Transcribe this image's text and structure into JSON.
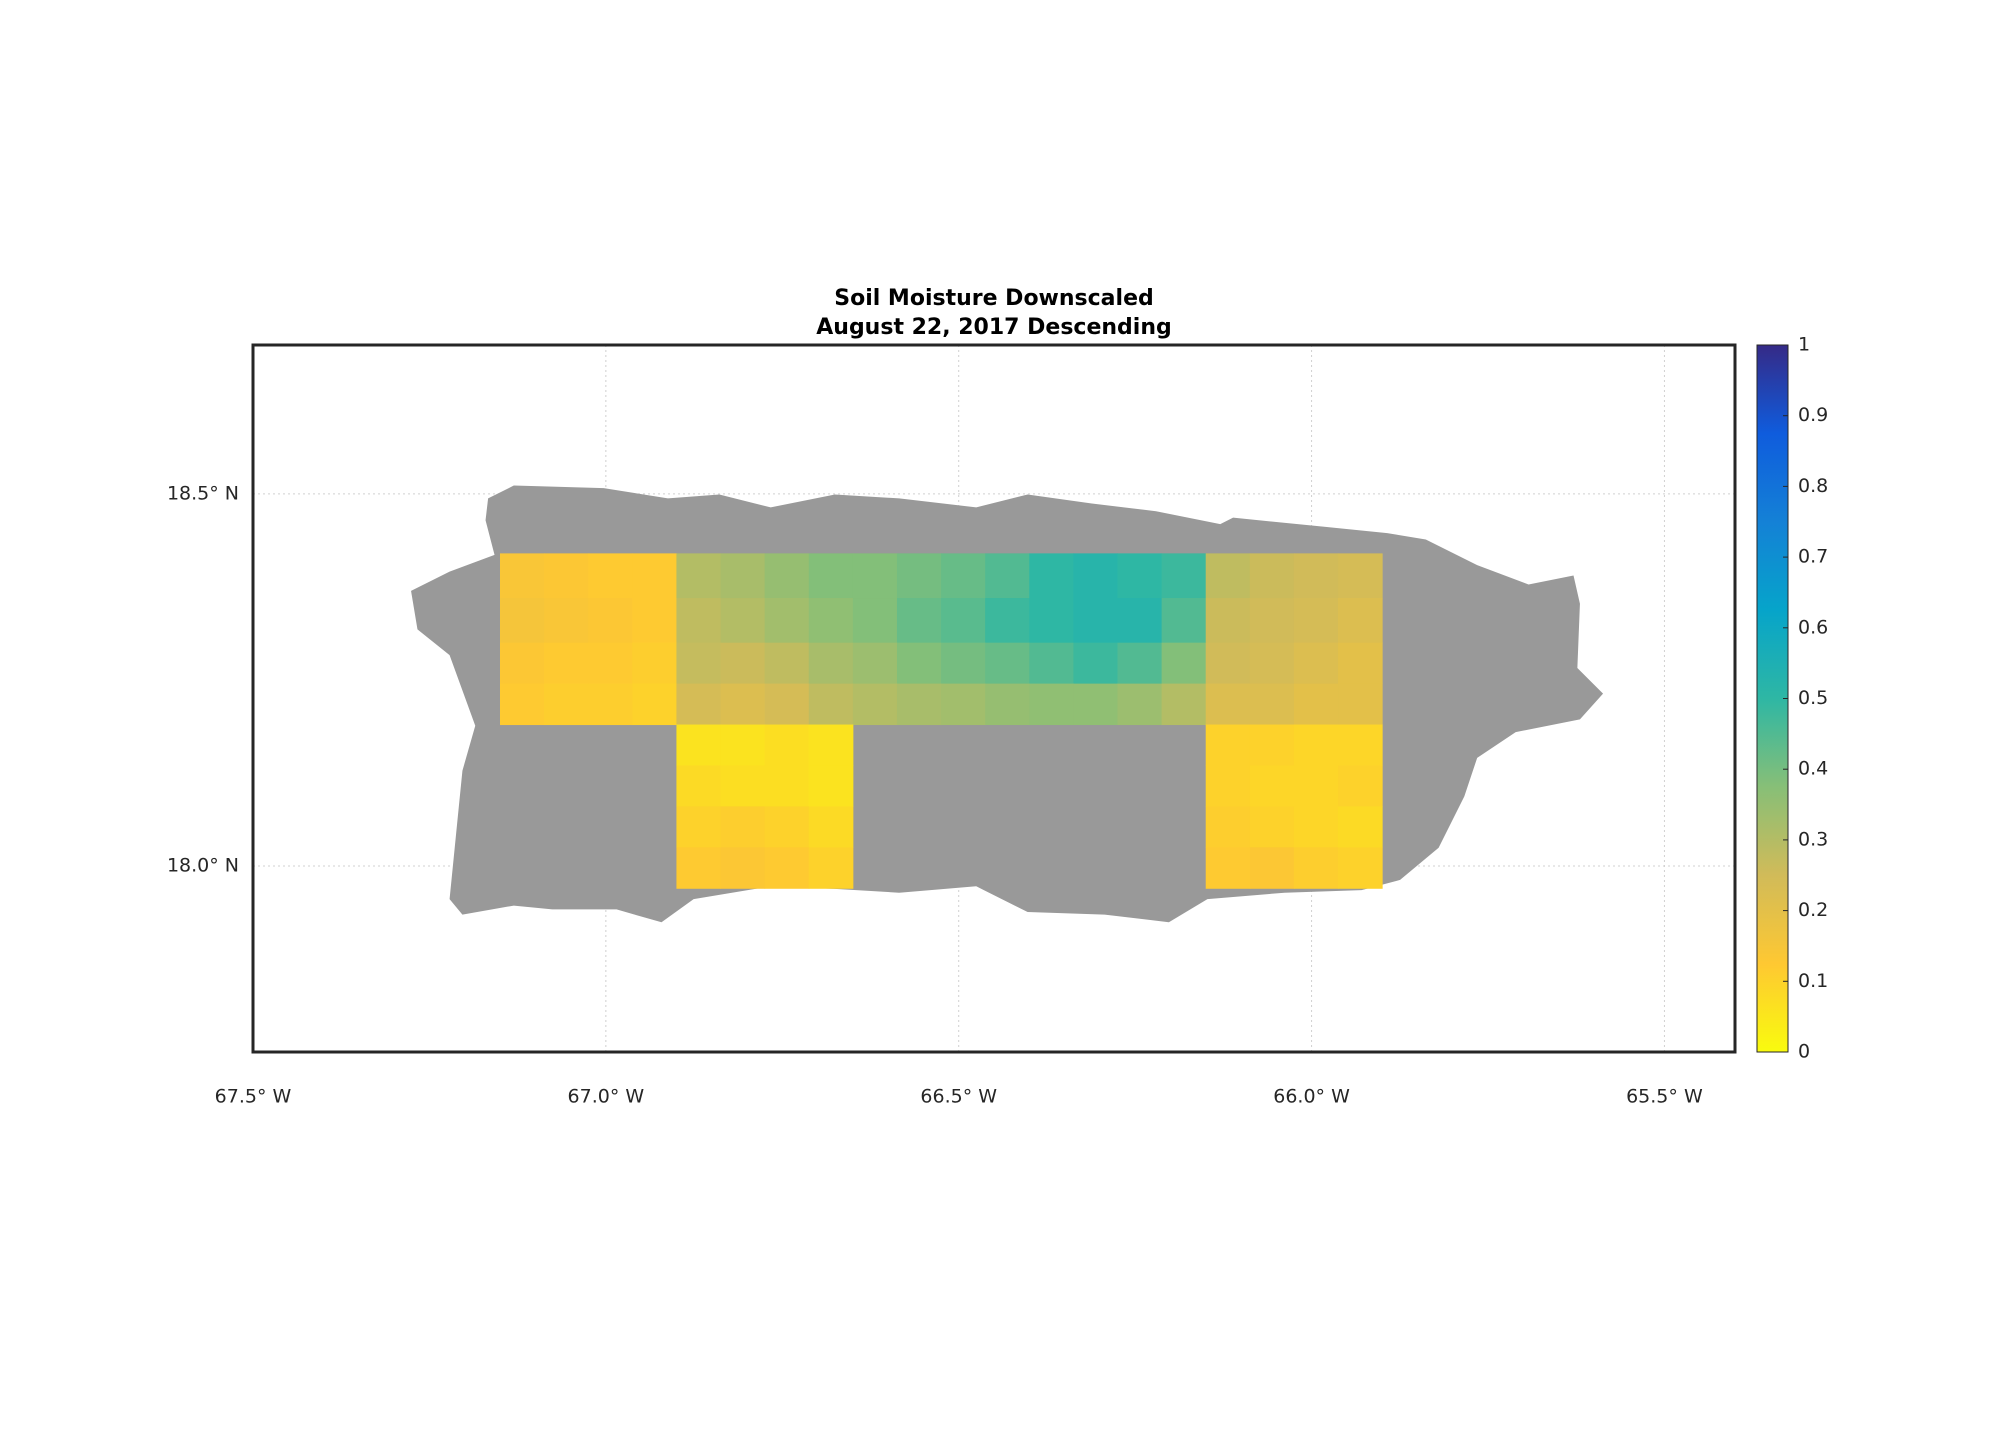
{
  "chart_data": {
    "type": "map",
    "title": "Soil Moisture Downscaled",
    "subtitle": "August 22, 2017 Descending",
    "xlim": [
      -67.5,
      -65.4
    ],
    "ylim": [
      17.75,
      18.7
    ],
    "xticks": [
      {
        "value": -67.5,
        "label": "67.5° W"
      },
      {
        "value": -67.0,
        "label": "67.0° W"
      },
      {
        "value": -66.5,
        "label": "66.5° W"
      },
      {
        "value": -66.0,
        "label": "66.0° W"
      },
      {
        "value": -65.5,
        "label": "65.5° W"
      }
    ],
    "yticks": [
      {
        "value": 18.0,
        "label": "18.0° N"
      },
      {
        "value": 18.5,
        "label": "18.5° N"
      }
    ],
    "grid": true,
    "lon_edges": [
      -67.15,
      -67.0875,
      -67.025,
      -66.9625,
      -66.9,
      -66.8375,
      -66.775,
      -66.7125,
      -66.65,
      -66.5875,
      -66.525,
      -66.4625,
      -66.4,
      -66.3375,
      -66.275,
      -66.2125,
      -66.15,
      -66.0875,
      -66.025,
      -65.9625,
      -65.9
    ],
    "lat_edges": [
      18.42,
      18.36,
      18.3,
      18.245,
      18.19,
      18.135,
      18.08,
      18.025,
      17.97
    ],
    "values": [
      [
        0.14,
        0.13,
        0.12,
        0.12,
        0.3,
        0.32,
        0.35,
        0.38,
        0.38,
        0.4,
        0.42,
        0.45,
        0.5,
        0.52,
        0.5,
        0.48,
        0.28,
        0.26,
        0.25,
        0.24
      ],
      [
        0.15,
        0.14,
        0.13,
        0.12,
        0.28,
        0.3,
        0.33,
        0.36,
        0.38,
        0.42,
        0.44,
        0.48,
        0.5,
        0.52,
        0.52,
        0.45,
        0.26,
        0.25,
        0.24,
        0.22
      ],
      [
        0.13,
        0.12,
        0.12,
        0.11,
        0.27,
        0.26,
        0.28,
        0.32,
        0.34,
        0.38,
        0.4,
        0.42,
        0.45,
        0.48,
        0.45,
        0.38,
        0.25,
        0.24,
        0.22,
        0.2
      ],
      [
        0.12,
        0.11,
        0.11,
        0.1,
        0.24,
        0.22,
        0.24,
        0.28,
        0.3,
        0.32,
        0.33,
        0.35,
        0.36,
        0.36,
        0.34,
        0.3,
        0.22,
        0.22,
        0.2,
        0.2
      ],
      [
        null,
        null,
        null,
        null,
        0.06,
        0.06,
        0.07,
        0.06,
        null,
        null,
        null,
        null,
        null,
        null,
        null,
        null,
        0.1,
        0.1,
        0.09,
        0.09
      ],
      [
        null,
        null,
        null,
        null,
        0.08,
        0.07,
        0.07,
        0.06,
        null,
        null,
        null,
        null,
        null,
        null,
        null,
        null,
        0.1,
        0.09,
        0.09,
        0.1
      ],
      [
        null,
        null,
        null,
        null,
        0.1,
        0.11,
        0.1,
        0.08,
        null,
        null,
        null,
        null,
        null,
        null,
        null,
        null,
        0.11,
        0.1,
        0.09,
        0.08
      ],
      [
        null,
        null,
        null,
        null,
        0.12,
        0.13,
        0.12,
        0.1,
        null,
        null,
        null,
        null,
        null,
        null,
        null,
        null,
        0.12,
        0.13,
        0.11,
        0.1
      ]
    ],
    "no_data_color": "#999999",
    "clim": [
      0,
      1
    ],
    "cticks": [
      0,
      0.1,
      0.2,
      0.3,
      0.4,
      0.5,
      0.6,
      0.7,
      0.8,
      0.9,
      1
    ]
  }
}
